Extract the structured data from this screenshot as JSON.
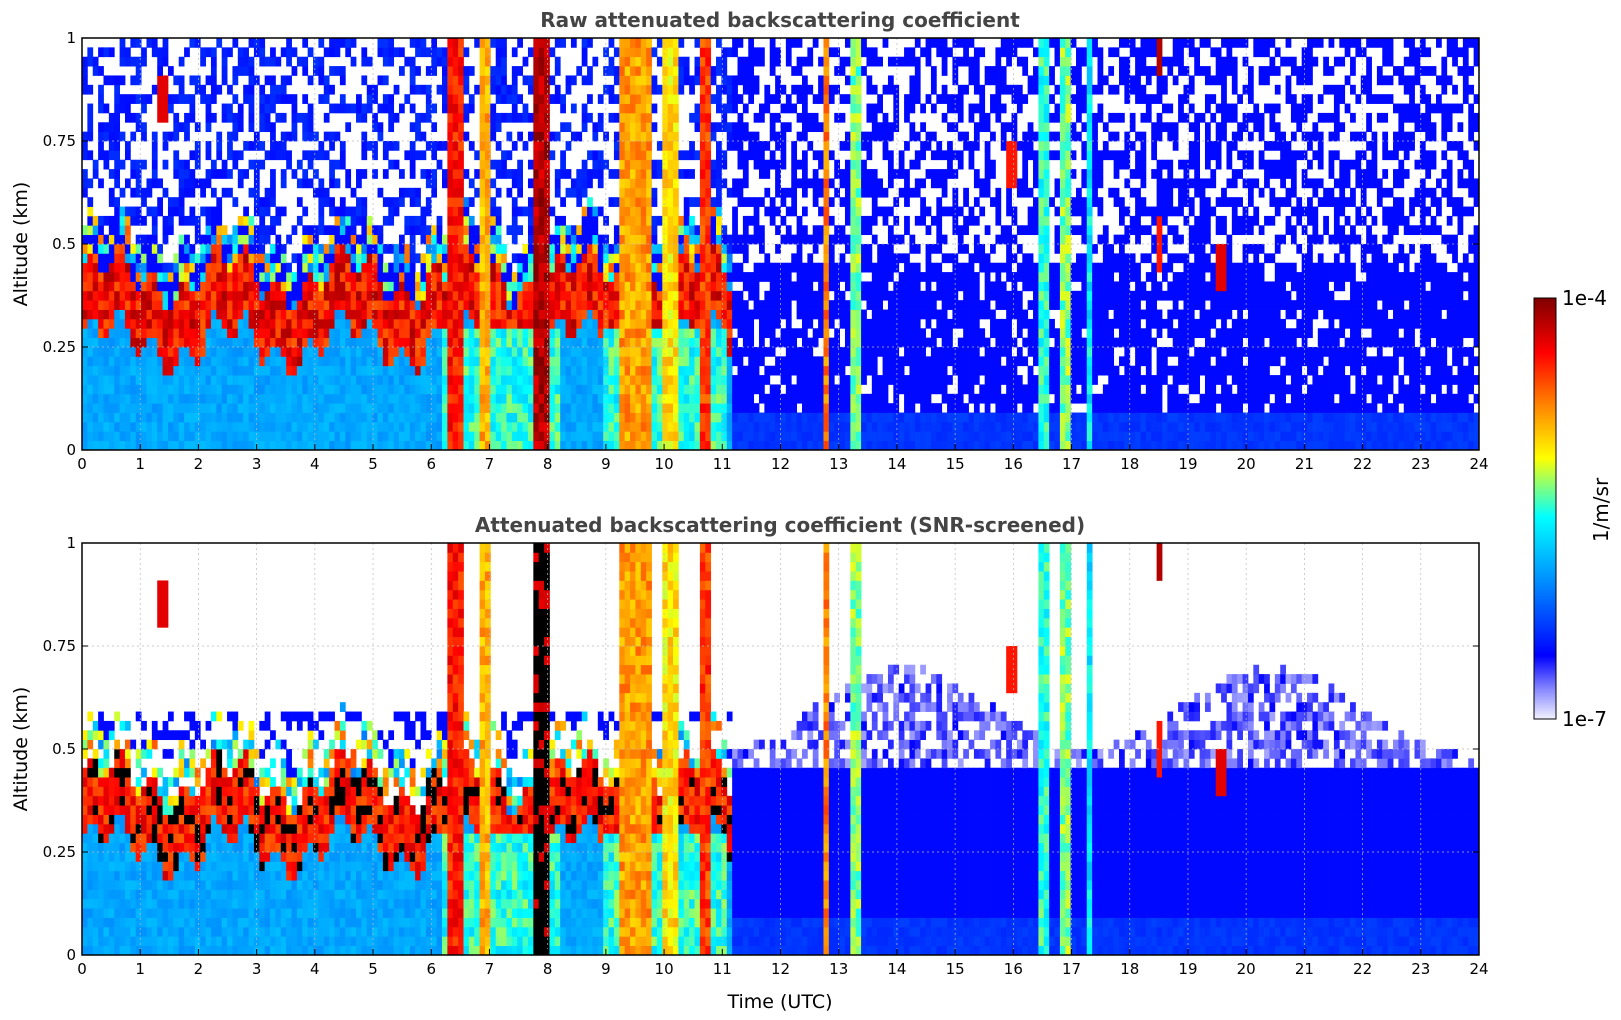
{
  "chart_data": [
    {
      "type": "heatmap",
      "title": "Raw attenuated backscattering coefficient",
      "xlabel": "",
      "ylabel": "Altitude (km)",
      "xlim": [
        0,
        24
      ],
      "ylim": [
        0,
        1
      ],
      "xticks": [
        "0",
        "1",
        "2",
        "3",
        "4",
        "5",
        "6",
        "7",
        "8",
        "9",
        "10",
        "11",
        "12",
        "13",
        "14",
        "15",
        "16",
        "17",
        "18",
        "19",
        "20",
        "21",
        "22",
        "23",
        "24"
      ],
      "yticks": [
        "0",
        "0.25",
        "0.5",
        "0.75",
        "1"
      ],
      "grid": true,
      "screened": false
    },
    {
      "type": "heatmap",
      "title": "Attenuated backscattering coefficient (SNR-screened)",
      "xlabel": "Time (UTC)",
      "ylabel": "Altitude (km)",
      "xlim": [
        0,
        24
      ],
      "ylim": [
        0,
        1
      ],
      "xticks": [
        "0",
        "1",
        "2",
        "3",
        "4",
        "5",
        "6",
        "7",
        "8",
        "9",
        "10",
        "11",
        "12",
        "13",
        "14",
        "15",
        "16",
        "17",
        "18",
        "19",
        "20",
        "21",
        "22",
        "23",
        "24"
      ],
      "yticks": [
        "0",
        "0.25",
        "0.5",
        "0.75",
        "1"
      ],
      "grid": true,
      "screened": true
    }
  ],
  "colorbar": {
    "label": "1/m/sr",
    "min_label": "1e-7",
    "max_label": "1e-4",
    "scale": "log",
    "colormap": [
      "#f2f2ff",
      "#0000ff",
      "#00a0ff",
      "#00ffff",
      "#ffff00",
      "#ff8000",
      "#ff0000",
      "#800000"
    ]
  },
  "field": {
    "cloud_base_km": 0.3,
    "dense_layer_hours": [
      [
        6.2,
        8.2
      ],
      [
        9.0,
        11.1
      ]
    ],
    "wide_columns": [
      {
        "t": 6.4,
        "w": 0.25,
        "level": 0.85
      },
      {
        "t": 6.9,
        "w": 0.15,
        "level": 0.7
      },
      {
        "t": 7.9,
        "w": 0.3,
        "level": 0.95
      },
      {
        "t": 9.5,
        "w": 0.55,
        "level": 0.72
      },
      {
        "t": 10.1,
        "w": 0.25,
        "level": 0.65
      },
      {
        "t": 10.7,
        "w": 0.25,
        "level": 0.82
      },
      {
        "t": 12.8,
        "w": 0.15,
        "level": 0.75
      },
      {
        "t": 13.3,
        "w": 0.15,
        "level": 0.55
      },
      {
        "t": 16.5,
        "w": 0.2,
        "level": 0.5
      },
      {
        "t": 16.9,
        "w": 0.2,
        "level": 0.55
      },
      {
        "t": 17.3,
        "w": 0.12,
        "level": 0.45
      }
    ],
    "sparse_features": [
      {
        "t": 1.4,
        "z": 0.85,
        "level": 0.9
      },
      {
        "t": 16.0,
        "z": 0.7,
        "level": 0.85
      },
      {
        "t": 18.5,
        "z": 0.97,
        "level": 0.95
      },
      {
        "t": 19.6,
        "z": 0.45,
        "level": 0.9
      },
      {
        "t": 18.5,
        "z": 0.5,
        "level": 0.85
      }
    ]
  }
}
